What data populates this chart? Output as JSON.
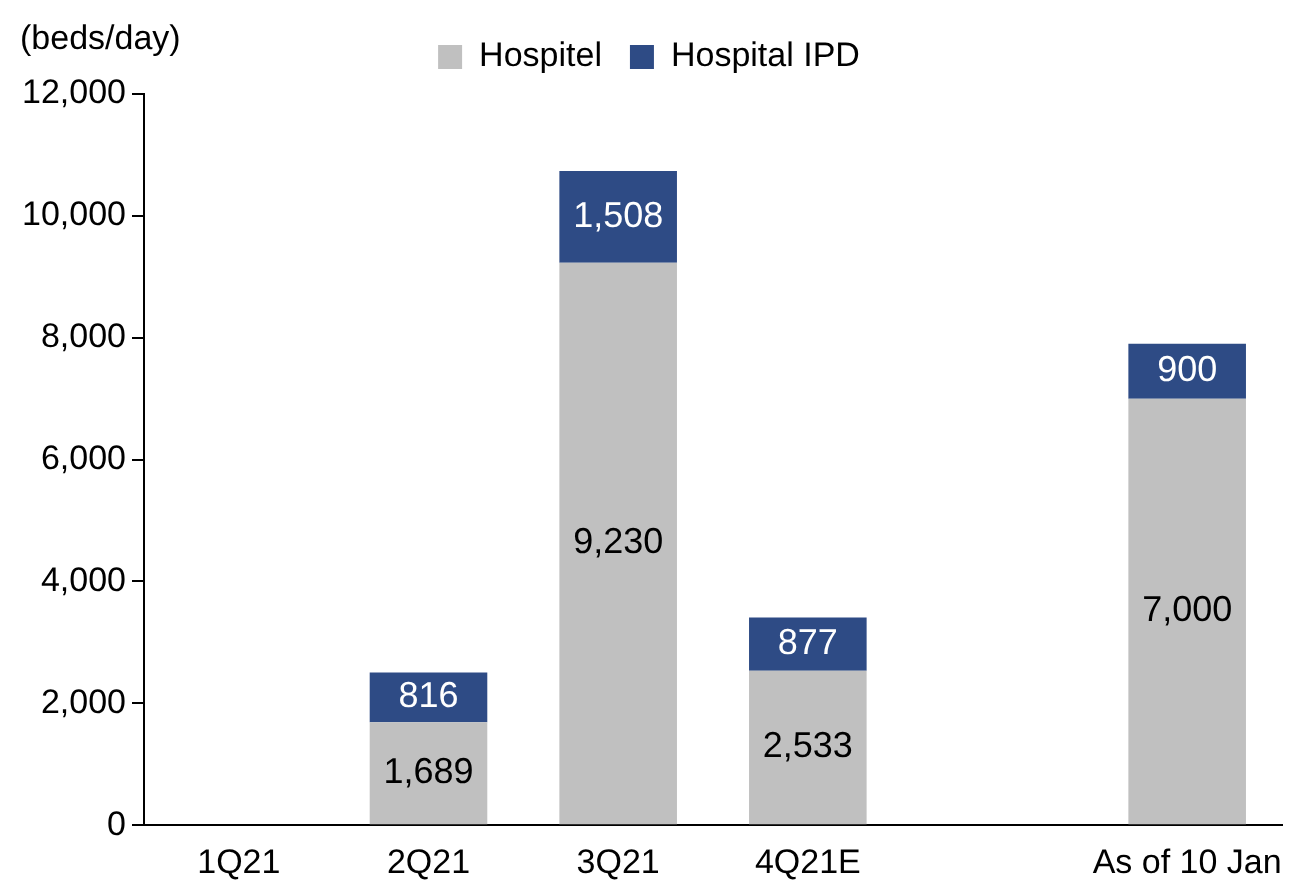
{
  "chart_data": {
    "type": "bar",
    "stacked": true,
    "ylabel": "(beds/day)",
    "categories": [
      "1Q21",
      "2Q21",
      "3Q21",
      "4Q21E",
      null,
      "As of 10 Jan"
    ],
    "series": [
      {
        "name": "Hospitel",
        "color": "#c0c0c0",
        "values": [
          null,
          1689,
          9230,
          2533,
          null,
          7000
        ],
        "value_labels": [
          null,
          "1,689",
          "9,230",
          "2,533",
          null,
          "7,000"
        ]
      },
      {
        "name": "Hospital IPD",
        "color": "#2e4b85",
        "values": [
          null,
          816,
          1508,
          877,
          null,
          900
        ],
        "value_labels": [
          null,
          "816",
          "1,508",
          "877",
          null,
          "900"
        ]
      }
    ],
    "ylim": [
      0,
      12000
    ],
    "yticks": [
      {
        "value": 0,
        "label": "0"
      },
      {
        "value": 2000,
        "label": "2,000"
      },
      {
        "value": 4000,
        "label": "4,000"
      },
      {
        "value": 6000,
        "label": "6,000"
      },
      {
        "value": 8000,
        "label": "8,000"
      },
      {
        "value": 10000,
        "label": "10,000"
      },
      {
        "value": 12000,
        "label": "12,000"
      }
    ],
    "grid": false,
    "legend": "top"
  }
}
